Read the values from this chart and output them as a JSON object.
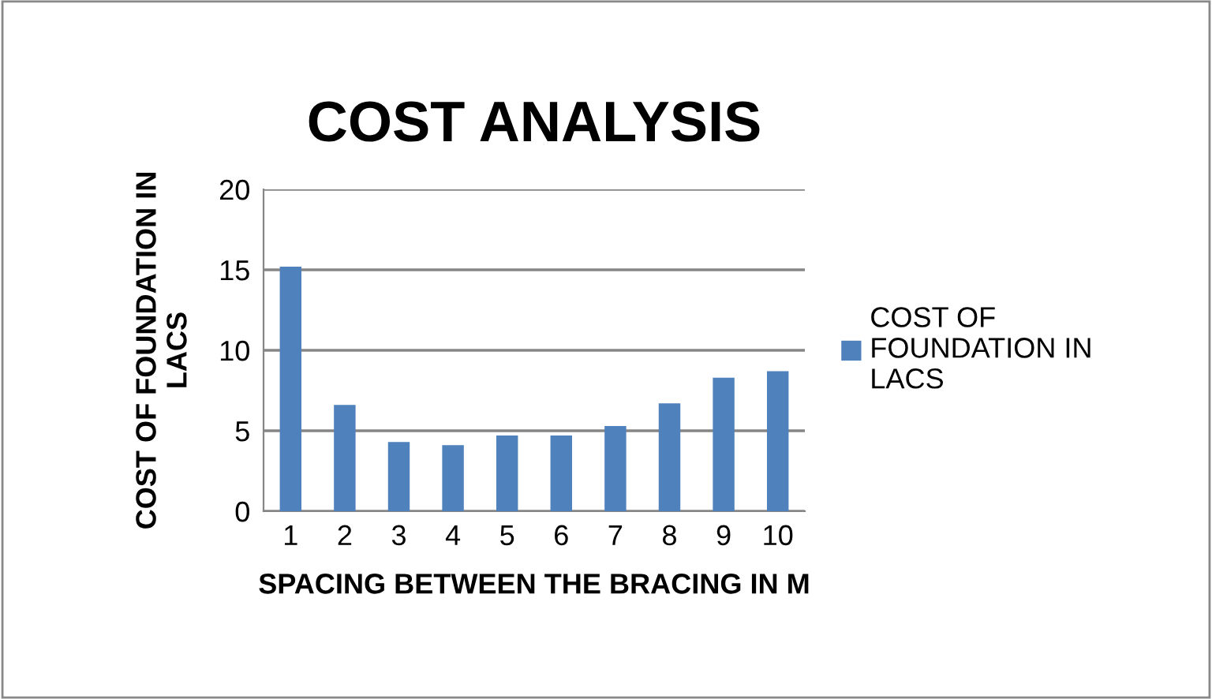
{
  "chart_data": {
    "type": "bar",
    "title": "COST ANALYSIS",
    "xlabel": "SPACING BETWEEN THE BRACING IN M",
    "ylabel": "COST OF FOUNDATION IN\nLACS",
    "categories": [
      "1",
      "2",
      "3",
      "4",
      "5",
      "6",
      "7",
      "8",
      "9",
      "10"
    ],
    "series": [
      {
        "name": "COST OF\nFOUNDATION IN\nLACS",
        "color": "#4f81bd",
        "values": [
          15.2,
          6.6,
          4.3,
          4.1,
          4.7,
          4.7,
          5.3,
          6.7,
          8.3,
          8.7
        ]
      }
    ],
    "ylim": [
      0,
      20
    ],
    "yticks": [
      0,
      5,
      10,
      15,
      20
    ],
    "grid": "y",
    "legend": "right"
  }
}
